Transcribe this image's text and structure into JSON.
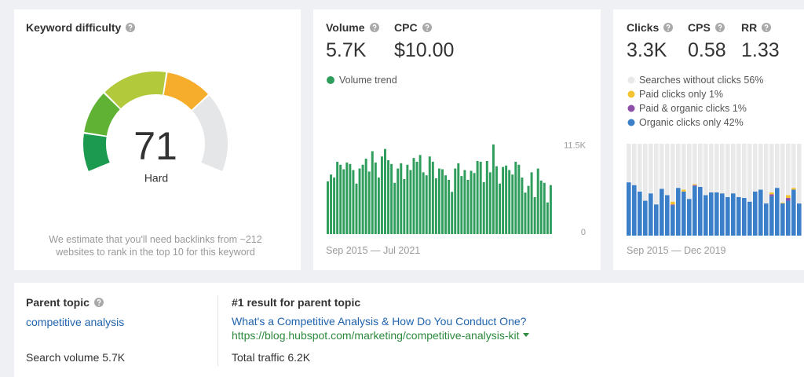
{
  "keyword_difficulty": {
    "title": "Keyword difficulty",
    "score": 71,
    "range": [
      0,
      100
    ],
    "rating": "Hard",
    "note": "We estimate that you'll need backlinks from ~212 websites to rank in the top 10 for this keyword"
  },
  "volume_card": {
    "metrics": [
      {
        "label": "Volume",
        "value": "5.7K"
      },
      {
        "label": "CPC",
        "value": "$10.00"
      }
    ]
  },
  "clicks_card": {
    "metrics": [
      {
        "label": "Clicks",
        "value": "3.3K"
      },
      {
        "label": "CPS",
        "value": "0.58"
      },
      {
        "label": "RR",
        "value": "1.33"
      }
    ]
  },
  "chart_data": [
    {
      "type": "bar",
      "series": [
        {
          "name": "Volume trend",
          "color": "#2f9e5c",
          "values": [
            7000,
            7900,
            7500,
            9600,
            9200,
            8600,
            9500,
            9300,
            8500,
            6700,
            8700,
            9200,
            10000,
            8300,
            11000,
            9500,
            7500,
            10300,
            11300,
            9800,
            9300,
            6800,
            8700,
            9400,
            7300,
            9200,
            8500,
            10100,
            9600,
            10500,
            8200,
            7800,
            10300,
            9600,
            7400,
            8700,
            8600,
            7800,
            7200,
            5600,
            8700,
            9400,
            7700,
            8500,
            7200,
            8400,
            8100,
            9700,
            9600,
            6900,
            9700,
            8200,
            11900,
            9000,
            6700,
            8900,
            9100,
            8500,
            7900,
            9600,
            9200,
            7500,
            5500,
            6400,
            8200,
            4900,
            8700,
            7100,
            6800,
            4200,
            6500
          ]
        }
      ],
      "ylim": [
        0,
        12200
      ],
      "yticks": [
        {
          "value": 11500,
          "label": "11.5K"
        },
        0
      ],
      "date_range": "Sep 2015 — Jul 2021"
    },
    {
      "type": "stacked_bar",
      "series": [
        {
          "name": "Searches without clicks",
          "share": "56%",
          "color": "#e9e9e9",
          "values": [
            42,
            45,
            52,
            62,
            54,
            66,
            49,
            56,
            63,
            48,
            50,
            60,
            44,
            47,
            56,
            53,
            53,
            54,
            58,
            54,
            58,
            59,
            63,
            52,
            50,
            65,
            53,
            48,
            64,
            56,
            48,
            65
          ]
        },
        {
          "name": "Paid clicks only",
          "share": "1%",
          "color": "#f4c430",
          "values": [
            0,
            0,
            0,
            0,
            0,
            0,
            0,
            0,
            3,
            0,
            2,
            0,
            1,
            0,
            0,
            0,
            0,
            0,
            0,
            0,
            0,
            0,
            0,
            0,
            0,
            0,
            2,
            0,
            1,
            3,
            2,
            0
          ]
        },
        {
          "name": "Paid & organic clicks",
          "share": "1%",
          "color": "#8e4fa8",
          "values": [
            0,
            0,
            0,
            0,
            0,
            0,
            0,
            0,
            1,
            0,
            0,
            0,
            1,
            0,
            0,
            0,
            0,
            0,
            0,
            0,
            0,
            0,
            0,
            0,
            0,
            0,
            2,
            0,
            0,
            3,
            0,
            0
          ]
        },
        {
          "name": "Organic clicks only",
          "share": "42%",
          "color": "#3b7fc9",
          "values": [
            58,
            55,
            48,
            38,
            46,
            34,
            51,
            44,
            33,
            52,
            48,
            40,
            54,
            53,
            44,
            47,
            47,
            46,
            42,
            46,
            42,
            41,
            37,
            48,
            50,
            35,
            43,
            52,
            35,
            38,
            50,
            35
          ]
        }
      ],
      "ylim": [
        0,
        100
      ],
      "date_range": "Sep 2015 — Dec 2019"
    }
  ],
  "parent_topic": {
    "title": "Parent topic",
    "keyword": "competitive analysis",
    "search_volume": "Search volume 5.7K"
  },
  "top_result": {
    "title": "#1 result for parent topic",
    "page_title": "What's a Competitive Analysis & How Do You Conduct One?",
    "url": "https://blog.hubspot.com/marketing/competitive-analysis-kit",
    "total_traffic": "Total traffic 6.2K"
  }
}
